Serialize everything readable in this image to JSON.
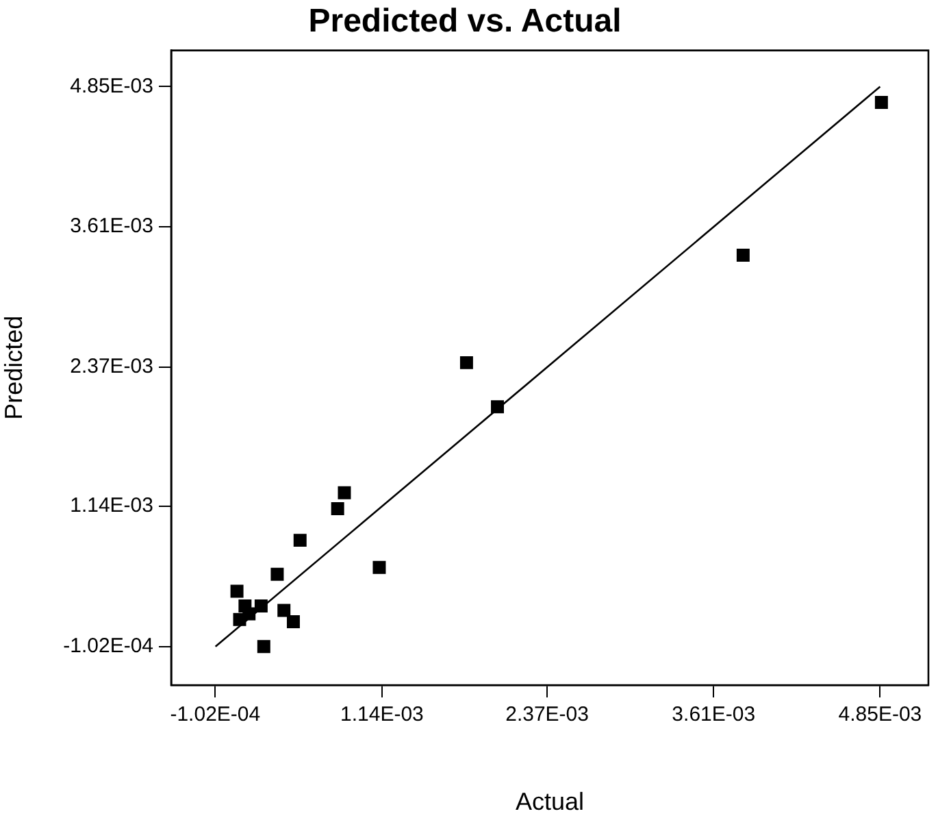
{
  "chart_data": {
    "type": "scatter",
    "title": "Predicted vs. Actual",
    "xlabel": "Actual",
    "ylabel": "Predicted",
    "xlim": [
      -0.00043,
      0.00521
    ],
    "ylim": [
      -0.00044,
      0.00517
    ],
    "xticks": [
      {
        "value": -0.000102,
        "label": "-1.02E-04"
      },
      {
        "value": 0.00114,
        "label": "1.14E-03"
      },
      {
        "value": 0.00237,
        "label": "2.37E-03"
      },
      {
        "value": 0.00361,
        "label": "3.61E-03"
      },
      {
        "value": 0.00485,
        "label": "4.85E-03"
      }
    ],
    "yticks": [
      {
        "value": -0.000102,
        "label": "-1.02E-04"
      },
      {
        "value": 0.00114,
        "label": "1.14E-03"
      },
      {
        "value": 0.00237,
        "label": "2.37E-03"
      },
      {
        "value": 0.00361,
        "label": "3.61E-03"
      },
      {
        "value": 0.00485,
        "label": "4.85E-03"
      }
    ],
    "grid": false,
    "legend": false,
    "series": [
      {
        "color": "#000000",
        "marker": "square",
        "x": [
          0.00486,
          0.00383,
          0.00177,
          0.002,
          0.00086,
          0.00081,
          0.00053,
          0.00112,
          0.00036,
          6e-05,
          0.00012,
          0.00024,
          0.00019,
          0.00015,
          8e-05,
          0.00041,
          0.00048,
          0.00026
        ],
        "values": [
          0.00471,
          0.00336,
          0.00241,
          0.00202,
          0.00126,
          0.00112,
          0.00084,
          0.0006,
          0.00054,
          0.00039,
          0.00026,
          0.00026,
          null,
          0.00019,
          0.00014,
          0.00022,
          0.00012,
          -0.0001
        ]
      },
      {
        "type": "line",
        "color": "#000000",
        "marker": "none",
        "line_style": "solid",
        "x": [
          -0.0001,
          0.00485
        ],
        "values": [
          -0.0001,
          0.00485
        ]
      }
    ]
  }
}
